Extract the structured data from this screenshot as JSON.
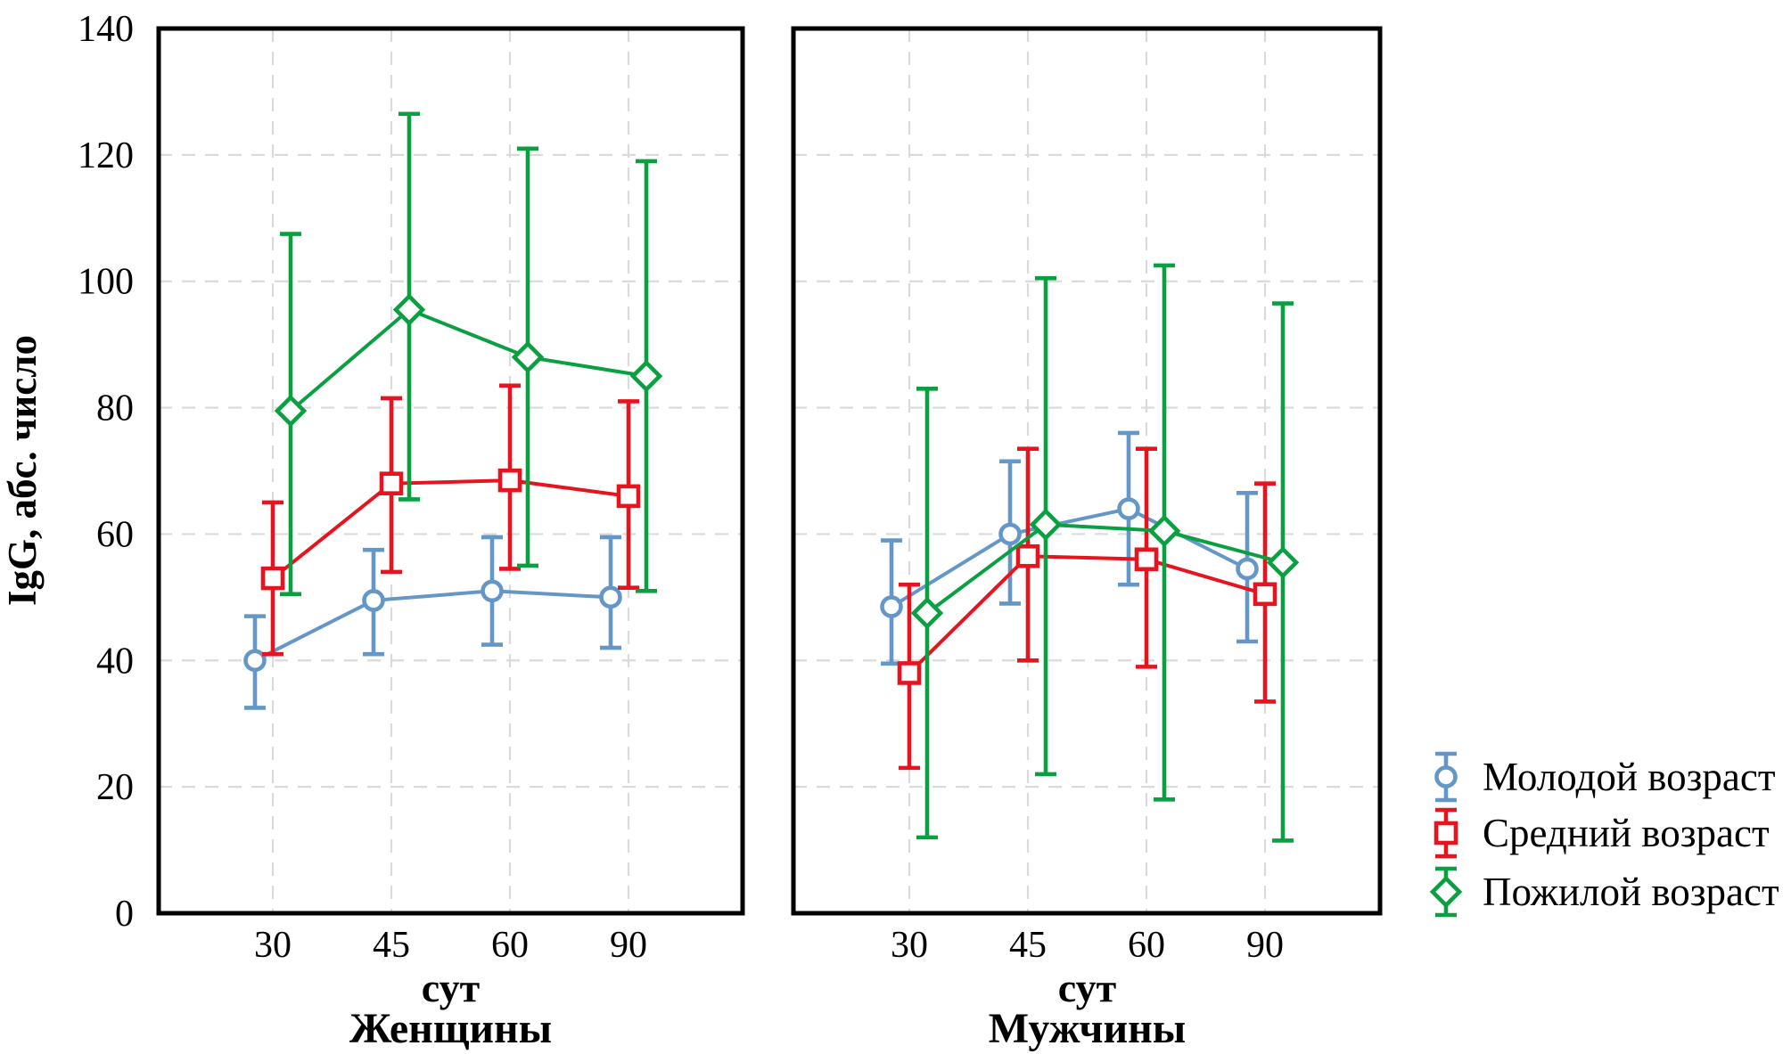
{
  "figure": {
    "y_axis": {
      "title": "IgG, абс. число",
      "min": 0,
      "max": 140,
      "ticks": [
        0,
        20,
        40,
        60,
        80,
        100,
        120,
        140
      ]
    },
    "x_axis": {
      "unit_label": "сут",
      "ticks": [
        "30",
        "45",
        "60",
        "90"
      ]
    },
    "panel_captions": [
      "Женщины",
      "Мужчины"
    ],
    "grid_color": "#DADADA",
    "legend": {
      "position": "right",
      "items": [
        {
          "label": "Молодой возраст",
          "marker": "circle",
          "color": "#6596C8"
        },
        {
          "label": "Средний возраст",
          "marker": "square",
          "color": "#E6141E"
        },
        {
          "label": "Пожилой возраст",
          "marker": "diamond",
          "color": "#0AA041"
        }
      ]
    }
  },
  "chart_data": [
    {
      "type": "line",
      "title": "Женщины",
      "xlabel": "сут",
      "ylabel": "IgG, абс. число",
      "x": [
        30,
        45,
        60,
        90
      ],
      "ylim": [
        0,
        140
      ],
      "grid": true,
      "series": [
        {
          "name": "Молодой возраст",
          "values": [
            40,
            49.5,
            51,
            50
          ],
          "err_low": [
            32.5,
            41,
            42.5,
            42
          ],
          "err_high": [
            47,
            57.5,
            59.5,
            59.5
          ]
        },
        {
          "name": "Средний возраст",
          "values": [
            53,
            68,
            68.5,
            66
          ],
          "err_low": [
            41,
            54,
            54.5,
            51.5
          ],
          "err_high": [
            65,
            81.5,
            83.5,
            81
          ]
        },
        {
          "name": "Пожилой возраст",
          "values": [
            79.5,
            95.5,
            88,
            85
          ],
          "err_low": [
            50.5,
            65.5,
            55,
            51
          ],
          "err_high": [
            107.5,
            126.5,
            121,
            119
          ]
        }
      ]
    },
    {
      "type": "line",
      "title": "Мужчины",
      "xlabel": "сут",
      "ylabel": "IgG, абс. число",
      "x": [
        30,
        45,
        60,
        90
      ],
      "ylim": [
        0,
        140
      ],
      "grid": true,
      "series": [
        {
          "name": "Молодой возраст",
          "values": [
            48.5,
            60,
            64,
            54.5
          ],
          "err_low": [
            39.5,
            49,
            52,
            43
          ],
          "err_high": [
            59,
            71.5,
            76,
            66.5
          ]
        },
        {
          "name": "Средний возраст",
          "values": [
            38,
            56.5,
            56,
            50.5
          ],
          "err_low": [
            23,
            40,
            39,
            33.5
          ],
          "err_high": [
            52,
            73.5,
            73.5,
            68
          ]
        },
        {
          "name": "Пожилой возраст",
          "values": [
            47.5,
            61.5,
            60.5,
            55.5
          ],
          "err_low": [
            12,
            22,
            18,
            11.5
          ],
          "err_high": [
            83,
            100.5,
            102.5,
            96.5
          ]
        }
      ]
    }
  ]
}
